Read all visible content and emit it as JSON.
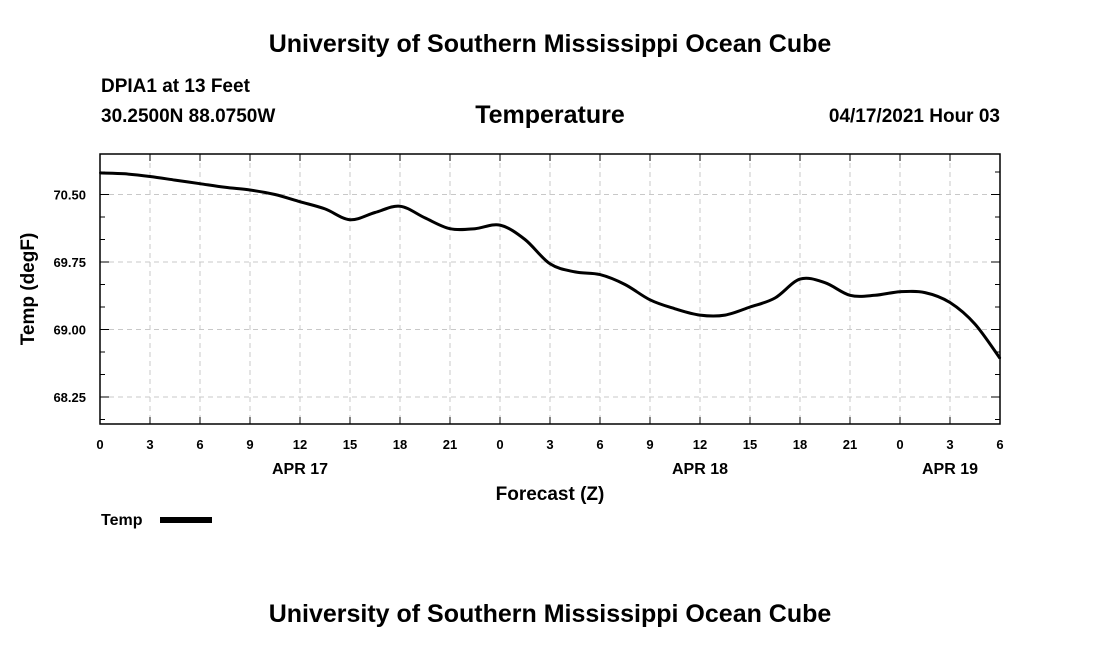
{
  "header": {
    "title": "University of Southern Mississippi Ocean Cube",
    "station": "DPIA1 at 13 Feet",
    "coords": "30.2500N  88.0750W",
    "chart_title": "Temperature",
    "datetime": "04/17/2021 Hour 03"
  },
  "footer": {
    "title": "University of Southern Mississippi Ocean Cube"
  },
  "chart_data": {
    "type": "line",
    "title": "Temperature",
    "xlabel": "Forecast (Z)",
    "ylabel": "Temp (degF)",
    "xlim": [
      0,
      54
    ],
    "ylim": [
      67.95,
      70.95
    ],
    "yticks": [
      68.25,
      69.0,
      69.75,
      70.5
    ],
    "ytick_labels": [
      "68.25",
      "69.00",
      "69.75",
      "70.50"
    ],
    "yminor_ticks": [
      68.0,
      68.5,
      68.75,
      69.25,
      69.5,
      70.0,
      70.25,
      70.75
    ],
    "xticks": [
      0,
      3,
      6,
      9,
      12,
      15,
      18,
      21,
      24,
      27,
      30,
      33,
      36,
      39,
      42,
      45,
      48,
      51,
      54
    ],
    "xtick_labels": [
      "0",
      "3",
      "6",
      "9",
      "12",
      "15",
      "18",
      "21",
      "0",
      "3",
      "6",
      "9",
      "12",
      "15",
      "18",
      "21",
      "0",
      "3",
      "6"
    ],
    "date_labels": [
      {
        "x": 12,
        "label": "APR 17"
      },
      {
        "x": 36,
        "label": "APR 18"
      },
      {
        "x": 51,
        "label": "APR 19"
      }
    ],
    "grid": true,
    "legend": {
      "position": "bottom-left",
      "label": "Temp"
    },
    "series": [
      {
        "name": "Temp",
        "x": [
          0,
          1.5,
          3,
          4.5,
          6,
          7.5,
          9,
          10.5,
          12,
          13.5,
          15,
          16.5,
          18,
          19.5,
          21,
          22.5,
          24,
          25.5,
          27,
          28.5,
          30,
          31.5,
          33,
          34.5,
          36,
          37.5,
          39,
          40.5,
          42,
          43.5,
          45,
          46.5,
          48,
          49.5,
          51,
          52.5,
          54
        ],
        "values": [
          70.74,
          70.73,
          70.7,
          70.66,
          70.62,
          70.58,
          70.55,
          70.5,
          70.42,
          70.34,
          70.22,
          70.3,
          70.37,
          70.24,
          70.12,
          70.12,
          70.16,
          70.0,
          69.73,
          69.64,
          69.61,
          69.5,
          69.33,
          69.23,
          69.16,
          69.16,
          69.25,
          69.35,
          69.56,
          69.52,
          69.38,
          69.38,
          69.42,
          69.41,
          69.3,
          69.06,
          68.68
        ]
      }
    ]
  }
}
